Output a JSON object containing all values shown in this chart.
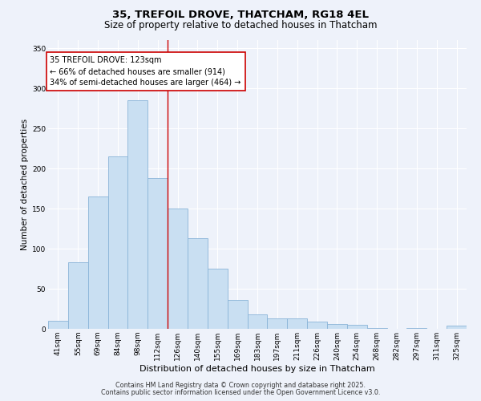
{
  "title_line1": "35, TREFOIL DROVE, THATCHAM, RG18 4EL",
  "title_line2": "Size of property relative to detached houses in Thatcham",
  "xlabel": "Distribution of detached houses by size in Thatcham",
  "ylabel": "Number of detached properties",
  "categories": [
    "41sqm",
    "55sqm",
    "69sqm",
    "84sqm",
    "98sqm",
    "112sqm",
    "126sqm",
    "140sqm",
    "155sqm",
    "169sqm",
    "183sqm",
    "197sqm",
    "211sqm",
    "226sqm",
    "240sqm",
    "254sqm",
    "268sqm",
    "282sqm",
    "297sqm",
    "311sqm",
    "325sqm"
  ],
  "values": [
    10,
    83,
    165,
    215,
    285,
    188,
    150,
    113,
    75,
    36,
    18,
    13,
    13,
    9,
    6,
    5,
    1,
    0,
    1,
    0,
    4
  ],
  "bar_color": "#c9dff2",
  "bar_edge_color": "#8ab4d8",
  "vline_x_index": 6,
  "vline_color": "#cc0000",
  "annotation_text": "35 TREFOIL DROVE: 123sqm\n← 66% of detached houses are smaller (914)\n34% of semi-detached houses are larger (464) →",
  "annotation_box_color": "#ffffff",
  "annotation_box_edge_color": "#cc0000",
  "ylim": [
    0,
    360
  ],
  "yticks": [
    0,
    50,
    100,
    150,
    200,
    250,
    300,
    350
  ],
  "background_color": "#eef2fa",
  "plot_bg_color": "#eef2fa",
  "footer_line1": "Contains HM Land Registry data © Crown copyright and database right 2025.",
  "footer_line2": "Contains public sector information licensed under the Open Government Licence v3.0.",
  "title_fontsize": 9.5,
  "subtitle_fontsize": 8.5,
  "axis_label_fontsize": 7.5,
  "tick_fontsize": 6.5,
  "annotation_fontsize": 7.0,
  "footer_fontsize": 5.8
}
